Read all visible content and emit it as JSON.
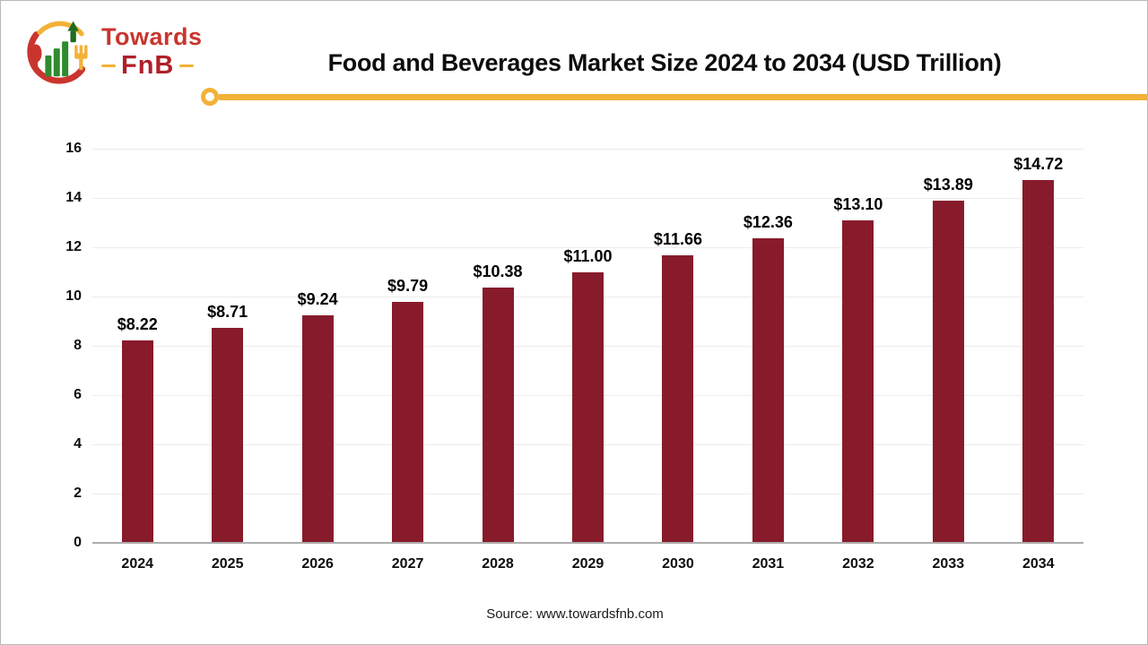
{
  "logo": {
    "text_primary": "Towards",
    "text_secondary": "FnB",
    "colors": {
      "red": "#c9352e",
      "dark_red": "#b01f28",
      "yellow": "#f2b237",
      "green": "#2e8b2e",
      "dark_green": "#1f6b22"
    }
  },
  "header": {
    "title": "Food and Beverages Market Size 2024 to 2034 (USD Trillion)"
  },
  "divider": {
    "color": "#f2b237"
  },
  "source": {
    "label": "Source: www.towardsfnb.com"
  },
  "chart_data": {
    "type": "bar",
    "title": "Food and Beverages Market Size 2024 to 2034 (USD Trillion)",
    "categories": [
      "2024",
      "2025",
      "2026",
      "2027",
      "2028",
      "2029",
      "2030",
      "2031",
      "2032",
      "2033",
      "2034"
    ],
    "values": [
      8.22,
      8.71,
      9.24,
      9.79,
      10.38,
      11.0,
      11.66,
      12.36,
      13.1,
      13.89,
      14.72
    ],
    "labels": [
      "$8.22",
      "$8.71",
      "$9.24",
      "$9.79",
      "$10.38",
      "$11.00",
      "$11.66",
      "$12.36",
      "$13.10",
      "$13.89",
      "$14.72"
    ],
    "xlabel": "",
    "ylabel": "",
    "ylim": [
      0,
      16
    ],
    "yticks": [
      0,
      2,
      4,
      6,
      8,
      10,
      12,
      14,
      16
    ],
    "bar_color": "#871b2b",
    "grid": true,
    "legend": false
  }
}
